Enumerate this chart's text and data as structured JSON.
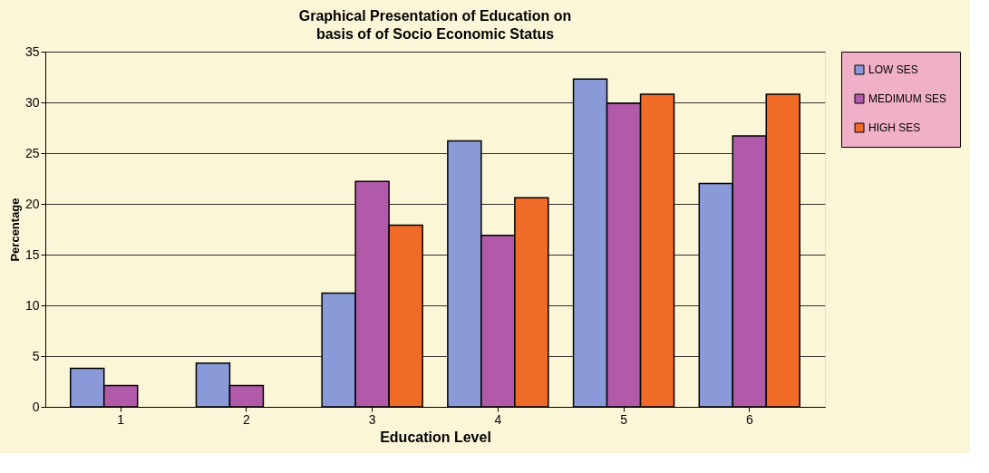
{
  "chart_data": {
    "type": "bar",
    "title": "Graphical Presentation of Education on basis of of Socio Economic Status",
    "xlabel": "Education Level",
    "ylabel": "Percentage",
    "categories": [
      "1",
      "2",
      "3",
      "4",
      "5",
      "6"
    ],
    "series": [
      {
        "name": "LOW SES",
        "color": "#8a9ad8",
        "values": [
          3.8,
          4.3,
          11.2,
          26.2,
          32.3,
          22.0
        ]
      },
      {
        "name": "MEDIMUM SES",
        "color": "#b25aaa",
        "values": [
          2.1,
          2.1,
          22.2,
          16.9,
          29.9,
          26.7
        ]
      },
      {
        "name": "HIGH SES",
        "color": "#f06a28",
        "values": [
          0,
          0,
          17.9,
          20.6,
          30.8,
          30.8
        ]
      }
    ],
    "ylim": [
      0,
      35
    ],
    "yticks": [
      0,
      5,
      10,
      15,
      20,
      25,
      30,
      35
    ],
    "grid": "y",
    "legend": "right"
  }
}
